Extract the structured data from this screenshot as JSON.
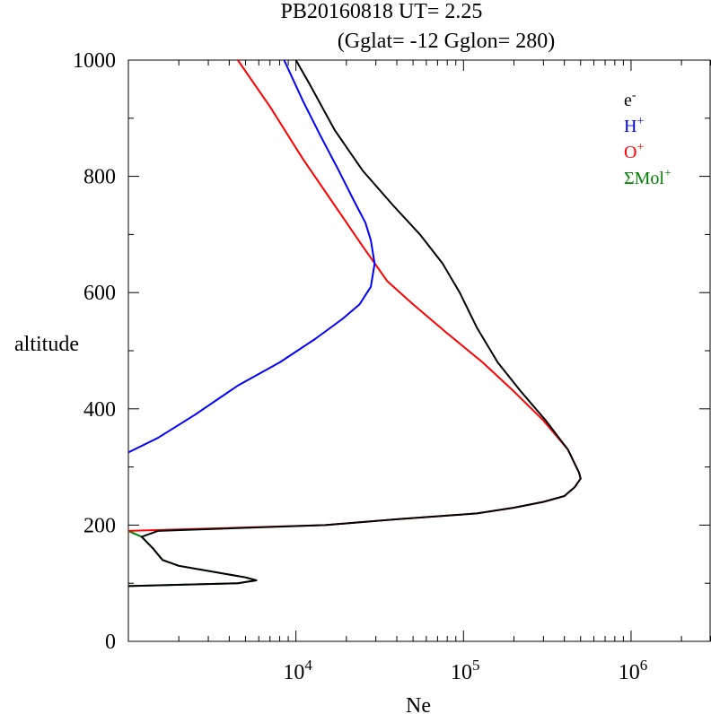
{
  "header": {
    "title_line1": "PB20160818   UT=  2.25",
    "title_line2": "(Gglat= -12   Gglon=  280)"
  },
  "chart_data": {
    "type": "line",
    "xlabel": "Ne",
    "ylabel": "altitude",
    "xscale": "log",
    "xlim": [
      1000,
      3000000
    ],
    "ylim": [
      0,
      1000
    ],
    "yticks": [
      "0",
      "200",
      "400",
      "600",
      "800",
      "1000"
    ],
    "xticks": [
      {
        "value": 10000,
        "base": "10",
        "exp": "4"
      },
      {
        "value": 100000,
        "base": "10",
        "exp": "5"
      },
      {
        "value": 1000000,
        "base": "10",
        "exp": "6"
      }
    ],
    "legend_position": "top-right",
    "series": [
      {
        "key": "om",
        "name": "ΣMol+",
        "legend_base": "ΣMol",
        "legend_sup": "+",
        "color": "#008000",
        "points": [
          [
            1000,
            190
          ],
          [
            1200,
            180
          ],
          [
            1400,
            160
          ],
          [
            1600,
            140
          ],
          [
            2000,
            130
          ],
          [
            5000,
            110
          ],
          [
            5800,
            105
          ],
          [
            4500,
            100
          ],
          [
            1000,
            95
          ]
        ]
      },
      {
        "key": "o",
        "name": "O+",
        "legend_base": "O",
        "legend_sup": "+",
        "color": "#ff0000",
        "points": [
          [
            1000,
            190
          ],
          [
            15000,
            200
          ],
          [
            40000,
            210
          ],
          [
            120000,
            220
          ],
          [
            200000,
            230
          ],
          [
            300000,
            240
          ],
          [
            400000,
            250
          ],
          [
            460000,
            265
          ],
          [
            500000,
            280
          ],
          [
            490000,
            290
          ],
          [
            420000,
            330
          ],
          [
            300000,
            380
          ],
          [
            200000,
            430
          ],
          [
            130000,
            480
          ],
          [
            80000,
            530
          ],
          [
            50000,
            580
          ],
          [
            35000,
            620
          ],
          [
            25000,
            680
          ],
          [
            18000,
            740
          ],
          [
            11000,
            830
          ],
          [
            7000,
            920
          ],
          [
            4500,
            1000
          ]
        ]
      },
      {
        "key": "h",
        "name": "H+",
        "legend_base": "H",
        "legend_sup": "+",
        "color": "#0000ff",
        "points": [
          [
            1000,
            325
          ],
          [
            1500,
            350
          ],
          [
            2500,
            390
          ],
          [
            4500,
            440
          ],
          [
            8000,
            480
          ],
          [
            13000,
            520
          ],
          [
            19000,
            555
          ],
          [
            24000,
            580
          ],
          [
            28000,
            610
          ],
          [
            29500,
            650
          ],
          [
            28000,
            690
          ],
          [
            26000,
            720
          ],
          [
            22000,
            760
          ],
          [
            18000,
            810
          ],
          [
            14000,
            870
          ],
          [
            11000,
            930
          ],
          [
            8500,
            1000
          ]
        ]
      },
      {
        "key": "e",
        "name": "e-",
        "legend_base": "e",
        "legend_sup": "-",
        "color": "#000000",
        "points": [
          [
            1000,
            95
          ],
          [
            4500,
            100
          ],
          [
            5800,
            105
          ],
          [
            5000,
            110
          ],
          [
            2000,
            130
          ],
          [
            1600,
            140
          ],
          [
            1400,
            160
          ],
          [
            1200,
            180
          ],
          [
            1500,
            190
          ],
          [
            15000,
            200
          ],
          [
            40000,
            210
          ],
          [
            120000,
            220
          ],
          [
            200000,
            230
          ],
          [
            300000,
            240
          ],
          [
            400000,
            250
          ],
          [
            460000,
            265
          ],
          [
            500000,
            280
          ],
          [
            490000,
            290
          ],
          [
            420000,
            330
          ],
          [
            310000,
            380
          ],
          [
            220000,
            430
          ],
          [
            160000,
            480
          ],
          [
            120000,
            540
          ],
          [
            95000,
            600
          ],
          [
            75000,
            650
          ],
          [
            55000,
            700
          ],
          [
            38000,
            750
          ],
          [
            25000,
            810
          ],
          [
            17000,
            880
          ],
          [
            12000,
            960
          ],
          [
            10000,
            1000
          ]
        ]
      }
    ]
  }
}
